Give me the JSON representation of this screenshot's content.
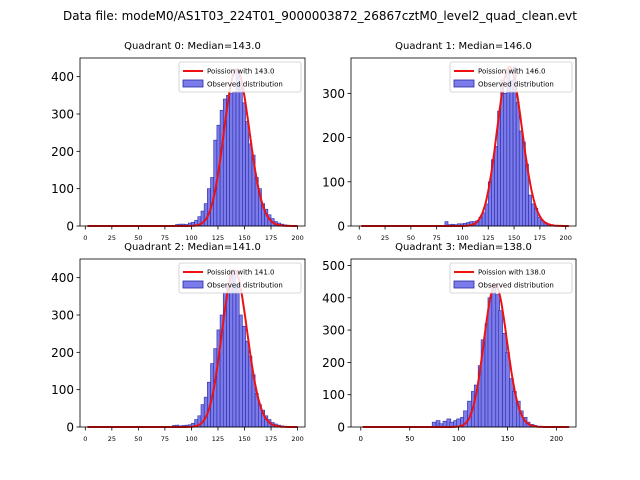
{
  "figure_title": "Data file: modeM0/AS1T03_224T01_9000003872_26867cztM0_level2_quad_clean.evt",
  "colors": {
    "hist_fill": "#7b7bea",
    "hist_edge": "#2a2aa8",
    "curve": "#ee1111"
  },
  "legend": {
    "poisson_prefix": "Poission with ",
    "observed": "Observed distribution"
  },
  "chart_data": [
    {
      "type": "bar",
      "title": "Quadrant 0: Median=143.0",
      "median": 143.0,
      "poisson_label": "Poission with 143.0",
      "observed_label": "Observed distribution",
      "xlim": [
        -5,
        207
      ],
      "ylim": [
        0,
        450
      ],
      "xticks": [
        0,
        25,
        50,
        75,
        100,
        125,
        150,
        175,
        200
      ],
      "yticks": [
        0,
        100,
        200,
        300,
        400
      ],
      "bins": [
        [
          85,
          4
        ],
        [
          88,
          5
        ],
        [
          91,
          5
        ],
        [
          94,
          4
        ],
        [
          97,
          8
        ],
        [
          100,
          10
        ],
        [
          103,
          15
        ],
        [
          106,
          25
        ],
        [
          109,
          40
        ],
        [
          112,
          60
        ],
        [
          115,
          100
        ],
        [
          118,
          130
        ],
        [
          121,
          230
        ],
        [
          124,
          270
        ],
        [
          127,
          310
        ],
        [
          130,
          340
        ],
        [
          133,
          350
        ],
        [
          136,
          355
        ],
        [
          139,
          360
        ],
        [
          142,
          420
        ],
        [
          145,
          380
        ],
        [
          148,
          330
        ],
        [
          151,
          280
        ],
        [
          154,
          220
        ],
        [
          157,
          190
        ],
        [
          160,
          130
        ],
        [
          163,
          100
        ],
        [
          166,
          60
        ],
        [
          169,
          45
        ],
        [
          172,
          30
        ],
        [
          175,
          20
        ],
        [
          178,
          12
        ],
        [
          181,
          8
        ],
        [
          184,
          5
        ],
        [
          187,
          3
        ],
        [
          190,
          2
        ]
      ]
    },
    {
      "type": "bar",
      "title": "Quadrant 1: Median=146.0",
      "median": 146.0,
      "poisson_label": "Poission with 146.0",
      "observed_label": "Observed distribution",
      "xlim": [
        -8,
        210
      ],
      "ylim": [
        0,
        380
      ],
      "xticks": [
        0,
        25,
        50,
        75,
        100,
        125,
        150,
        175,
        200
      ],
      "yticks": [
        0,
        100,
        200,
        300
      ],
      "bins": [
        [
          83,
          10
        ],
        [
          86,
          3
        ],
        [
          89,
          4
        ],
        [
          92,
          3
        ],
        [
          95,
          5
        ],
        [
          98,
          5
        ],
        [
          101,
          6
        ],
        [
          104,
          8
        ],
        [
          107,
          10
        ],
        [
          110,
          10
        ],
        [
          113,
          12
        ],
        [
          116,
          20
        ],
        [
          119,
          30
        ],
        [
          122,
          50
        ],
        [
          125,
          100
        ],
        [
          128,
          150
        ],
        [
          131,
          180
        ],
        [
          134,
          260
        ],
        [
          137,
          330
        ],
        [
          140,
          300
        ],
        [
          143,
          350
        ],
        [
          146,
          330
        ],
        [
          149,
          360
        ],
        [
          152,
          280
        ],
        [
          155,
          215
        ],
        [
          158,
          190
        ],
        [
          161,
          140
        ],
        [
          164,
          70
        ],
        [
          167,
          50
        ],
        [
          170,
          40
        ],
        [
          173,
          20
        ],
        [
          176,
          12
        ],
        [
          179,
          8
        ],
        [
          182,
          5
        ],
        [
          185,
          3
        ]
      ]
    },
    {
      "type": "bar",
      "title": "Quadrant 2: Median=141.0",
      "median": 141.0,
      "poisson_label": "Poission with 141.0",
      "observed_label": "Observed distribution",
      "xlim": [
        -5,
        207
      ],
      "ylim": [
        0,
        450
      ],
      "xticks": [
        0,
        25,
        50,
        75,
        100,
        125,
        150,
        175,
        200
      ],
      "yticks": [
        0,
        100,
        200,
        300,
        400
      ],
      "bins": [
        [
          82,
          4
        ],
        [
          85,
          5
        ],
        [
          88,
          3
        ],
        [
          91,
          4
        ],
        [
          94,
          5
        ],
        [
          97,
          6
        ],
        [
          100,
          10
        ],
        [
          103,
          20
        ],
        [
          106,
          30
        ],
        [
          109,
          60
        ],
        [
          112,
          80
        ],
        [
          115,
          120
        ],
        [
          118,
          170
        ],
        [
          121,
          210
        ],
        [
          124,
          260
        ],
        [
          127,
          300
        ],
        [
          130,
          360
        ],
        [
          133,
          380
        ],
        [
          136,
          420
        ],
        [
          139,
          410
        ],
        [
          142,
          380
        ],
        [
          145,
          300
        ],
        [
          148,
          270
        ],
        [
          151,
          230
        ],
        [
          154,
          190
        ],
        [
          157,
          140
        ],
        [
          160,
          90
        ],
        [
          163,
          60
        ],
        [
          166,
          45
        ],
        [
          169,
          30
        ],
        [
          172,
          20
        ],
        [
          175,
          12
        ],
        [
          178,
          8
        ],
        [
          181,
          5
        ],
        [
          184,
          3
        ]
      ]
    },
    {
      "type": "bar",
      "title": "Quadrant 3: Median=138.0",
      "median": 138.0,
      "poisson_label": "Poission with 138.0",
      "observed_label": "Observed distribution",
      "xlim": [
        -10,
        220
      ],
      "ylim": [
        0,
        520
      ],
      "xticks": [
        0,
        50,
        100,
        150,
        200
      ],
      "yticks": [
        0,
        100,
        200,
        300,
        400,
        500
      ],
      "bins": [
        [
          73,
          15
        ],
        [
          77,
          20
        ],
        [
          80,
          10
        ],
        [
          84,
          18
        ],
        [
          88,
          25
        ],
        [
          91,
          15
        ],
        [
          95,
          20
        ],
        [
          98,
          25
        ],
        [
          102,
          30
        ],
        [
          105,
          50
        ],
        [
          109,
          80
        ],
        [
          113,
          110
        ],
        [
          116,
          130
        ],
        [
          120,
          190
        ],
        [
          123,
          270
        ],
        [
          127,
          320
        ],
        [
          130,
          400
        ],
        [
          134,
          440
        ],
        [
          138,
          410
        ],
        [
          141,
          360
        ],
        [
          145,
          290
        ],
        [
          148,
          230
        ],
        [
          152,
          150
        ],
        [
          155,
          110
        ],
        [
          159,
          80
        ],
        [
          162,
          50
        ],
        [
          166,
          30
        ],
        [
          169,
          15
        ],
        [
          173,
          8
        ],
        [
          176,
          5
        ]
      ]
    }
  ]
}
